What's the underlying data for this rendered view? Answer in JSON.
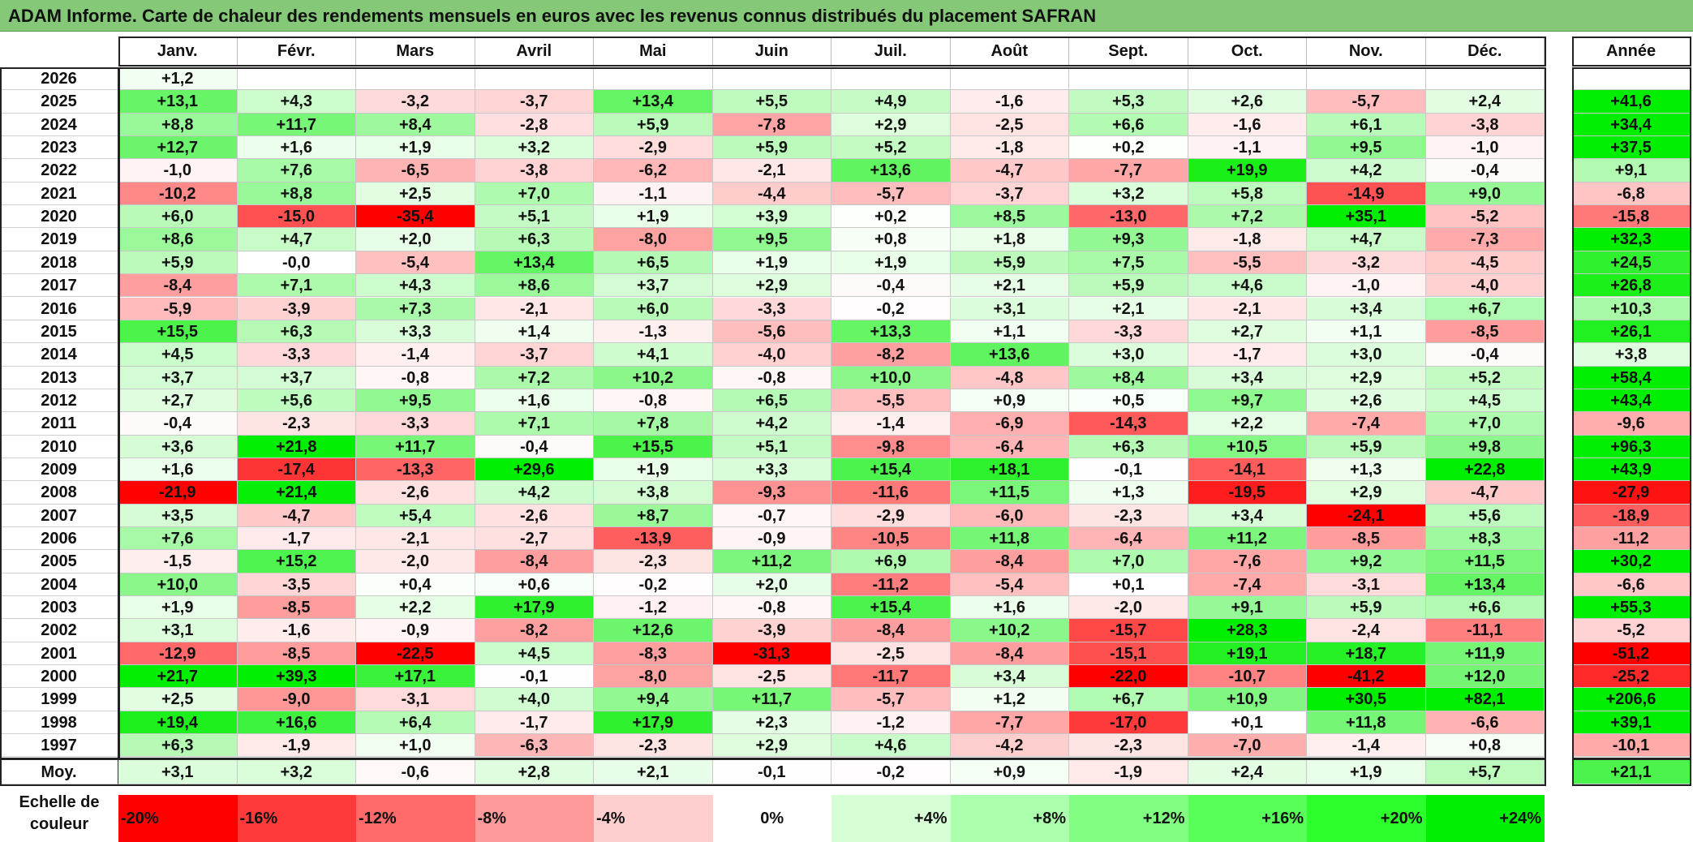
{
  "title": "ADAM Informe. Carte de chaleur des rendements mensuels en euros avec les revenus connus distribués du placement SAFRAN",
  "chart_data": {
    "type": "heatmap",
    "title": "ADAM Informe. Carte de chaleur des rendements mensuels en euros avec les revenus connus distribués du placement SAFRAN",
    "columns": [
      "Janv.",
      "Févr.",
      "Mars",
      "Avril",
      "Mai",
      "Juin",
      "Juil.",
      "Août",
      "Sept.",
      "Oct.",
      "Nov.",
      "Déc."
    ],
    "annual_header": "Année",
    "rows": [
      {
        "year": "2026",
        "values": [
          "+1,2",
          "",
          "",
          "",
          "",
          "",
          "",
          "",
          "",
          "",
          "",
          ""
        ],
        "annual": ""
      },
      {
        "year": "2025",
        "values": [
          "+13,1",
          "+4,3",
          "-3,2",
          "-3,7",
          "+13,4",
          "+5,5",
          "+4,9",
          "-1,6",
          "+5,3",
          "+2,6",
          "-5,7",
          "+2,4"
        ],
        "annual": "+41,6"
      },
      {
        "year": "2024",
        "values": [
          "+8,8",
          "+11,7",
          "+8,4",
          "-2,8",
          "+5,9",
          "-7,8",
          "+2,9",
          "-2,5",
          "+6,6",
          "-1,6",
          "+6,1",
          "-3,8"
        ],
        "annual": "+34,4"
      },
      {
        "year": "2023",
        "values": [
          "+12,7",
          "+1,6",
          "+1,9",
          "+3,2",
          "-2,9",
          "+5,9",
          "+5,2",
          "-1,8",
          "+0,2",
          "-1,1",
          "+9,5",
          "-1,0"
        ],
        "annual": "+37,5"
      },
      {
        "year": "2022",
        "values": [
          "-1,0",
          "+7,6",
          "-6,5",
          "-3,8",
          "-6,2",
          "-2,1",
          "+13,6",
          "-4,7",
          "-7,7",
          "+19,9",
          "+4,2",
          "-0,4"
        ],
        "annual": "+9,1"
      },
      {
        "year": "2021",
        "values": [
          "-10,2",
          "+8,8",
          "+2,5",
          "+7,0",
          "-1,1",
          "-4,4",
          "-5,7",
          "-3,7",
          "+3,2",
          "+5,8",
          "-14,9",
          "+9,0"
        ],
        "annual": "-6,8"
      },
      {
        "year": "2020",
        "values": [
          "+6,0",
          "-15,0",
          "-35,4",
          "+5,1",
          "+1,9",
          "+3,9",
          "+0,2",
          "+8,5",
          "-13,0",
          "+7,2",
          "+35,1",
          "-5,2"
        ],
        "annual": "-15,8"
      },
      {
        "year": "2019",
        "values": [
          "+8,6",
          "+4,7",
          "+2,0",
          "+6,3",
          "-8,0",
          "+9,5",
          "+0,8",
          "+1,8",
          "+9,3",
          "-1,8",
          "+4,7",
          "-7,3"
        ],
        "annual": "+32,3"
      },
      {
        "year": "2018",
        "values": [
          "+5,9",
          "-0,0",
          "-5,4",
          "+13,4",
          "+6,5",
          "+1,9",
          "+1,9",
          "+5,9",
          "+7,5",
          "-5,5",
          "-3,2",
          "-4,5"
        ],
        "annual": "+24,5"
      },
      {
        "year": "2017",
        "values": [
          "-8,4",
          "+7,1",
          "+4,3",
          "+8,6",
          "+3,7",
          "+2,9",
          "-0,4",
          "+2,1",
          "+5,9",
          "+4,6",
          "-1,0",
          "-4,0"
        ],
        "annual": "+26,8"
      },
      {
        "year": "2016",
        "values": [
          "-5,9",
          "-3,9",
          "+7,3",
          "-2,1",
          "+6,0",
          "-3,3",
          "-0,2",
          "+3,1",
          "+2,1",
          "-2,1",
          "+3,4",
          "+6,7"
        ],
        "annual": "+10,3"
      },
      {
        "year": "2015",
        "values": [
          "+15,5",
          "+6,3",
          "+3,3",
          "+1,4",
          "-1,3",
          "-5,6",
          "+13,3",
          "+1,1",
          "-3,3",
          "+2,7",
          "+1,1",
          "-8,5"
        ],
        "annual": "+26,1"
      },
      {
        "year": "2014",
        "values": [
          "+4,5",
          "-3,3",
          "-1,4",
          "-3,7",
          "+4,1",
          "-4,0",
          "-8,2",
          "+13,6",
          "+3,0",
          "-1,7",
          "+3,0",
          "-0,4"
        ],
        "annual": "+3,8"
      },
      {
        "year": "2013",
        "values": [
          "+3,7",
          "+3,7",
          "-0,8",
          "+7,2",
          "+10,2",
          "-0,8",
          "+10,0",
          "-4,8",
          "+8,4",
          "+3,4",
          "+2,9",
          "+5,2"
        ],
        "annual": "+58,4"
      },
      {
        "year": "2012",
        "values": [
          "+2,7",
          "+5,6",
          "+9,5",
          "+1,6",
          "-0,8",
          "+6,5",
          "-5,5",
          "+0,9",
          "+0,5",
          "+9,7",
          "+2,6",
          "+4,5"
        ],
        "annual": "+43,4"
      },
      {
        "year": "2011",
        "values": [
          "-0,4",
          "-2,3",
          "-3,3",
          "+7,1",
          "+7,8",
          "+4,2",
          "-1,4",
          "-6,9",
          "-14,3",
          "+2,2",
          "-7,4",
          "+7,0"
        ],
        "annual": "-9,6"
      },
      {
        "year": "2010",
        "values": [
          "+3,6",
          "+21,8",
          "+11,7",
          "-0,4",
          "+15,5",
          "+5,1",
          "-9,8",
          "-6,4",
          "+6,3",
          "+10,5",
          "+5,9",
          "+9,8"
        ],
        "annual": "+96,3"
      },
      {
        "year": "2009",
        "values": [
          "+1,6",
          "-17,4",
          "-13,3",
          "+29,6",
          "+1,9",
          "+3,3",
          "+15,4",
          "+18,1",
          "-0,1",
          "-14,1",
          "+1,3",
          "+22,8"
        ],
        "annual": "+43,9"
      },
      {
        "year": "2008",
        "values": [
          "-21,9",
          "+21,4",
          "-2,6",
          "+4,2",
          "+3,8",
          "-9,3",
          "-11,6",
          "+11,5",
          "+1,3",
          "-19,5",
          "+2,9",
          "-4,7"
        ],
        "annual": "-27,9"
      },
      {
        "year": "2007",
        "values": [
          "+3,5",
          "-4,7",
          "+5,4",
          "-2,6",
          "+8,7",
          "-0,7",
          "-2,9",
          "-6,0",
          "-2,3",
          "+3,4",
          "-24,1",
          "+5,6"
        ],
        "annual": "-18,9"
      },
      {
        "year": "2006",
        "values": [
          "+7,6",
          "-1,7",
          "-2,1",
          "-2,7",
          "-13,9",
          "-0,9",
          "-10,5",
          "+11,8",
          "-6,4",
          "+11,2",
          "-8,5",
          "+8,3"
        ],
        "annual": "-11,2"
      },
      {
        "year": "2005",
        "values": [
          "-1,5",
          "+15,2",
          "-2,0",
          "-8,4",
          "-2,3",
          "+11,2",
          "+6,9",
          "-8,4",
          "+7,0",
          "-7,6",
          "+9,2",
          "+11,5"
        ],
        "annual": "+30,2"
      },
      {
        "year": "2004",
        "values": [
          "+10,0",
          "-3,5",
          "+0,4",
          "+0,6",
          "-0,2",
          "+2,0",
          "-11,2",
          "-5,4",
          "+0,1",
          "-7,4",
          "-3,1",
          "+13,4"
        ],
        "annual": "-6,6"
      },
      {
        "year": "2003",
        "values": [
          "+1,9",
          "-8,5",
          "+2,2",
          "+17,9",
          "-1,2",
          "-0,8",
          "+15,4",
          "+1,6",
          "-2,0",
          "+9,1",
          "+5,9",
          "+6,6"
        ],
        "annual": "+55,3"
      },
      {
        "year": "2002",
        "values": [
          "+3,1",
          "-1,6",
          "-0,9",
          "-8,2",
          "+12,6",
          "-3,9",
          "-8,4",
          "+10,2",
          "-15,7",
          "+28,3",
          "-2,4",
          "-11,1"
        ],
        "annual": "-5,2"
      },
      {
        "year": "2001",
        "values": [
          "-12,9",
          "-8,5",
          "-22,5",
          "+4,5",
          "-8,3",
          "-31,3",
          "-2,5",
          "-8,4",
          "-15,1",
          "+19,1",
          "+18,7",
          "+11,9"
        ],
        "annual": "-51,2"
      },
      {
        "year": "2000",
        "values": [
          "+21,7",
          "+39,3",
          "+17,1",
          "-0,1",
          "-8,0",
          "-2,5",
          "-11,7",
          "+3,4",
          "-22,0",
          "-10,7",
          "-41,2",
          "+12,0"
        ],
        "annual": "-25,2"
      },
      {
        "year": "1999",
        "values": [
          "+2,5",
          "-9,0",
          "-3,1",
          "+4,0",
          "+9,4",
          "+11,7",
          "-5,7",
          "+1,2",
          "+6,7",
          "+10,9",
          "+30,5",
          "+82,1"
        ],
        "annual": "+206,6"
      },
      {
        "year": "1998",
        "values": [
          "+19,4",
          "+16,6",
          "+6,4",
          "-1,7",
          "+17,9",
          "+2,3",
          "-1,2",
          "-7,7",
          "-17,0",
          "+0,1",
          "+11,8",
          "-6,6"
        ],
        "annual": "+39,1"
      },
      {
        "year": "1997",
        "values": [
          "+6,3",
          "-1,9",
          "+1,0",
          "-6,3",
          "-2,3",
          "+2,9",
          "+4,6",
          "-4,2",
          "-2,3",
          "-7,0",
          "-1,4",
          "+0,8"
        ],
        "annual": "-10,1"
      }
    ],
    "average": {
      "label": "Moy.",
      "values": [
        "+3,1",
        "+3,2",
        "-0,6",
        "+2,8",
        "+2,1",
        "-0,1",
        "-0,2",
        "+0,9",
        "-1,9",
        "+2,4",
        "+1,9",
        "+5,7"
      ],
      "annual": "+21,1"
    },
    "color_scale": {
      "label": "Echelle de couleur",
      "steps": [
        {
          "label": "-20%",
          "value": -20,
          "color": "#ff0000"
        },
        {
          "label": "-16%",
          "value": -16,
          "color": "#ff3a3a"
        },
        {
          "label": "-12%",
          "value": -12,
          "color": "#ff6a6a"
        },
        {
          "label": "-8%",
          "value": -8,
          "color": "#ff9a9a"
        },
        {
          "label": "-4%",
          "value": -4,
          "color": "#ffcece"
        },
        {
          "label": "0%",
          "value": 0,
          "color": "#ffffff"
        },
        {
          "label": "+4%",
          "value": 4,
          "color": "#d6ffd6"
        },
        {
          "label": "+8%",
          "value": 8,
          "color": "#acffac"
        },
        {
          "label": "+12%",
          "value": 12,
          "color": "#82ff82"
        },
        {
          "label": "+16%",
          "value": 16,
          "color": "#58ff58"
        },
        {
          "label": "+20%",
          "value": 20,
          "color": "#2cff2c"
        },
        {
          "label": "+24%",
          "value": 24,
          "color": "#00ee00"
        }
      ]
    }
  }
}
